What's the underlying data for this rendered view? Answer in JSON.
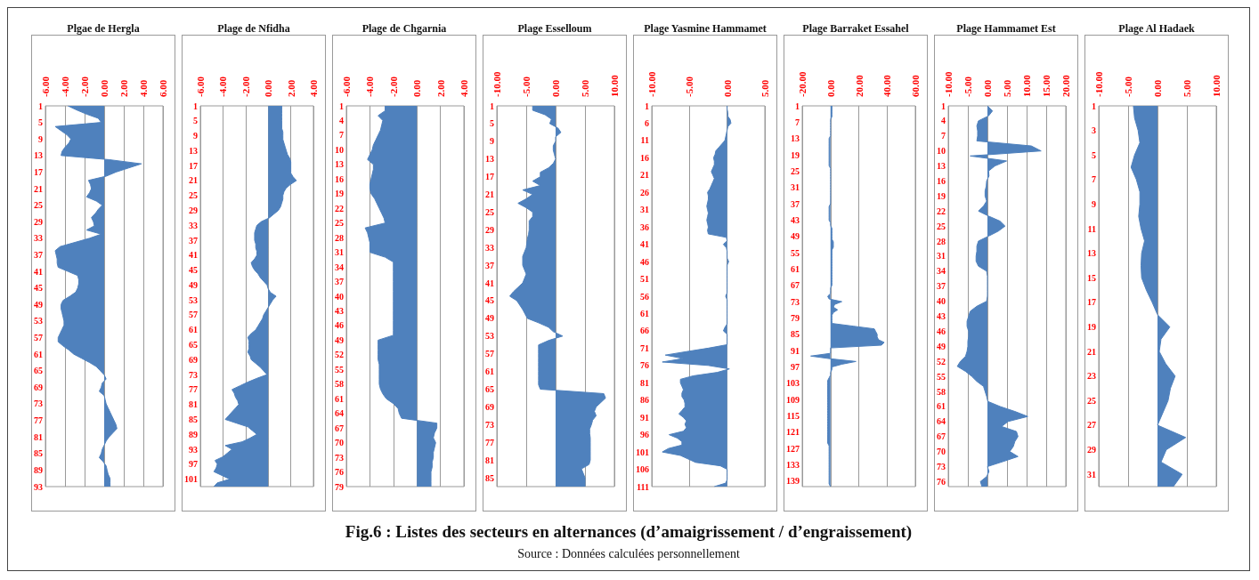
{
  "chart_data": [
    {
      "type": "area",
      "orientation": "horizontal",
      "title": "Plgae de Hergla",
      "color": "#4f81bd",
      "grid": "x",
      "xlim": [
        -6,
        6
      ],
      "xticks": [
        {
          "value": -6,
          "label": "-6.00"
        },
        {
          "value": -4,
          "label": "-4.00"
        },
        {
          "value": -2,
          "label": "-2.00"
        },
        {
          "value": 0,
          "label": "0.00"
        },
        {
          "value": 2,
          "label": "2.00"
        },
        {
          "value": 4,
          "label": "4.00"
        },
        {
          "value": 6,
          "label": "6.00"
        }
      ],
      "categories": [
        "1",
        null,
        null,
        null,
        "5",
        null,
        null,
        null,
        "9",
        null,
        null,
        null,
        "13",
        null,
        null,
        null,
        "17",
        null,
        null,
        null,
        "21",
        null,
        null,
        null,
        "25",
        null,
        null,
        null,
        "29",
        null,
        null,
        null,
        "33",
        null,
        null,
        null,
        "37",
        null,
        null,
        null,
        "41",
        null,
        null,
        null,
        "45",
        null,
        null,
        null,
        "49",
        null,
        null,
        null,
        "53",
        null,
        null,
        null,
        "57",
        null,
        null,
        null,
        "61",
        null,
        null,
        null,
        "65",
        null,
        null,
        null,
        "69",
        null,
        null,
        null,
        "73",
        null,
        null,
        null,
        "77",
        null,
        null,
        null,
        "81",
        null,
        null,
        null,
        "85",
        null,
        null,
        null,
        "89",
        null,
        null,
        null,
        "93"
      ],
      "values": [
        -3.7,
        -2.8,
        -1.8,
        -0.6,
        -0.3,
        -5.0,
        -4.4,
        -3.8,
        -3.4,
        -3.6,
        -4.0,
        -4.3,
        -4.4,
        0.5,
        3.8,
        2.5,
        1.2,
        0.2,
        -1.6,
        -1.4,
        -1.3,
        -1.5,
        -1.8,
        -0.8,
        -0.2,
        -0.6,
        -0.9,
        -1.3,
        -1.1,
        -1.0,
        -1.8,
        -0.3,
        -1.5,
        -3.0,
        -4.5,
        -5.0,
        -4.9,
        -4.8,
        -4.8,
        -4.7,
        -3.7,
        -2.7,
        -2.6,
        -2.6,
        -2.7,
        -2.9,
        -3.5,
        -4.2,
        -4.4,
        -4.4,
        -4.3,
        -4.2,
        -4.1,
        -4.1,
        -4.3,
        -4.5,
        -4.7,
        -4.7,
        -4.2,
        -3.6,
        -3.1,
        -2.3,
        -1.5,
        -0.8,
        -0.4,
        0,
        0.2,
        -0.2,
        -0.3,
        -0.5,
        0,
        0.1,
        0.2,
        0.4,
        0.6,
        0.8,
        1.0,
        1.2,
        1.3,
        0.9,
        0.5,
        0.2,
        0,
        -0.2,
        -0.3,
        -0.5,
        -0.1,
        0.2,
        0.3,
        0.4,
        0.6,
        0.6,
        0.6
      ]
    },
    {
      "type": "area",
      "orientation": "horizontal",
      "title": "Plage de Nfidha",
      "color": "#4f81bd",
      "grid": "x",
      "xlim": [
        -6,
        4
      ],
      "xticks": [
        {
          "value": -6,
          "label": "-6.00"
        },
        {
          "value": -4,
          "label": "-4.00"
        },
        {
          "value": -2,
          "label": "-2.00"
        },
        {
          "value": 0,
          "label": "0.00"
        },
        {
          "value": 2,
          "label": "2.00"
        },
        {
          "value": 4,
          "label": "4.00"
        }
      ],
      "categories": [
        "1",
        null,
        null,
        null,
        "5",
        null,
        null,
        null,
        "9",
        null,
        null,
        null,
        "13",
        null,
        null,
        null,
        "17",
        null,
        null,
        null,
        "21",
        null,
        null,
        null,
        "25",
        null,
        null,
        null,
        "29",
        null,
        null,
        null,
        "33",
        null,
        null,
        null,
        "37",
        null,
        null,
        null,
        "41",
        null,
        null,
        null,
        "45",
        null,
        null,
        null,
        "49",
        null,
        null,
        null,
        "53",
        null,
        null,
        null,
        "57",
        null,
        null,
        null,
        "61",
        null,
        null,
        null,
        "65",
        null,
        null,
        null,
        "69",
        null,
        null,
        null,
        "73",
        null,
        null,
        null,
        "77",
        null,
        null,
        null,
        "81",
        null,
        null,
        null,
        "85",
        null,
        null,
        null,
        "89",
        null,
        null,
        null,
        "93",
        null,
        null,
        null,
        "97",
        null,
        null,
        null,
        "101",
        null,
        null
      ],
      "values": [
        1.2,
        1.2,
        1.2,
        1.2,
        1.2,
        1.2,
        1.2,
        1.3,
        1.3,
        1.3,
        1.4,
        1.5,
        1.6,
        1.7,
        1.9,
        2.0,
        2.0,
        2.0,
        2.0,
        2.2,
        2.5,
        2.0,
        1.6,
        1.4,
        1.3,
        1.3,
        1.2,
        1.1,
        0.9,
        0.5,
        0.1,
        -0.6,
        -1.0,
        -1.1,
        -1.2,
        -1.2,
        -1.2,
        -1.1,
        -1.1,
        -1.0,
        -1.0,
        -1.2,
        -1.5,
        -1.4,
        -1.2,
        -0.9,
        -0.7,
        -0.4,
        -0.1,
        0,
        0.2,
        0.7,
        0.4,
        0.2,
        0,
        -0.2,
        -0.4,
        -0.5,
        -0.7,
        -0.9,
        -1.1,
        -1.5,
        -1.8,
        -1.7,
        -1.7,
        -1.7,
        -1.8,
        -1.6,
        -1.5,
        -1.1,
        -0.7,
        -0.4,
        -0.1,
        -1.0,
        -1.8,
        -2.5,
        -3.2,
        -3.0,
        -2.9,
        -2.7,
        -2.6,
        -2.9,
        -3.2,
        -3.5,
        -3.8,
        -2.8,
        -1.8,
        -1.4,
        -1.0,
        -1.6,
        -2.3,
        -3.8,
        -3.2,
        -3.6,
        -4.0,
        -4.7,
        -4.5,
        -4.6,
        -4.8,
        -4.1,
        -3.4,
        -4.5,
        -4.8
      ]
    },
    {
      "type": "area",
      "orientation": "horizontal",
      "title": "Plage de Chgarnia",
      "color": "#4f81bd",
      "grid": "x",
      "xlim": [
        -6,
        4
      ],
      "xticks": [
        {
          "value": -6,
          "label": "-6.00"
        },
        {
          "value": -4,
          "label": "-4.00"
        },
        {
          "value": -2,
          "label": "-2.00"
        },
        {
          "value": 0,
          "label": "0.00"
        },
        {
          "value": 2,
          "label": "2.00"
        },
        {
          "value": 4,
          "label": "4.00"
        }
      ],
      "categories": [
        "1",
        null,
        null,
        "4",
        null,
        null,
        "7",
        null,
        null,
        "10",
        null,
        null,
        "13",
        null,
        null,
        "16",
        null,
        null,
        "19",
        null,
        null,
        "22",
        null,
        null,
        "25",
        null,
        null,
        "28",
        null,
        null,
        "31",
        null,
        null,
        "34",
        null,
        null,
        "37",
        null,
        null,
        "40",
        null,
        null,
        "43",
        null,
        null,
        "46",
        null,
        null,
        "49",
        null,
        null,
        "52",
        null,
        null,
        "55",
        null,
        null,
        "58",
        null,
        null,
        "61",
        null,
        null,
        "64",
        null,
        null,
        "67",
        null,
        null,
        "70",
        null,
        null,
        "73",
        null,
        null,
        "76",
        null,
        null,
        "79"
      ],
      "values": [
        -2.7,
        -2.7,
        -3.3,
        -2.9,
        -3.0,
        -3.1,
        -3.3,
        -3.5,
        -3.7,
        -3.8,
        -4.0,
        -4.2,
        -3.7,
        -3.7,
        -3.8,
        -3.9,
        -4.0,
        -4.0,
        -3.9,
        -3.6,
        -3.4,
        -3.2,
        -3.0,
        -2.8,
        -2.7,
        -4.4,
        -4.2,
        -4.1,
        -4.0,
        -4.0,
        -4.0,
        -2.7,
        -2.0,
        -2.0,
        -2.0,
        -2.0,
        -2.0,
        -2.0,
        -2.0,
        -2.0,
        -2.0,
        -2.0,
        -2.0,
        -2.0,
        -2.0,
        -2.0,
        -2.0,
        -2.0,
        -3.3,
        -3.3,
        -3.3,
        -3.3,
        -3.3,
        -3.2,
        -3.2,
        -3.2,
        -3.2,
        -3.2,
        -3.1,
        -2.9,
        -2.6,
        -2.0,
        -1.6,
        -1.5,
        -1.3,
        1.7,
        1.7,
        1.5,
        1.4,
        1.6,
        1.5,
        1.4,
        1.4,
        1.3,
        1.3,
        1.2,
        1.2,
        1.2,
        1.2
      ]
    },
    {
      "type": "area",
      "orientation": "horizontal",
      "title": "Plage Esselloum",
      "color": "#4f81bd",
      "grid": "x",
      "xlim": [
        -10,
        10
      ],
      "xticks": [
        {
          "value": -10,
          "label": "-10.00"
        },
        {
          "value": -5,
          "label": "-5.00"
        },
        {
          "value": 0,
          "label": "0.00"
        },
        {
          "value": 5,
          "label": "5.00"
        },
        {
          "value": 10,
          "label": "10.00"
        }
      ],
      "categories": [
        "1",
        null,
        null,
        null,
        "5",
        null,
        null,
        null,
        "9",
        null,
        null,
        null,
        "13",
        null,
        null,
        null,
        "17",
        null,
        null,
        null,
        "21",
        null,
        null,
        null,
        "25",
        null,
        null,
        null,
        "29",
        null,
        null,
        null,
        "33",
        null,
        null,
        null,
        "37",
        null,
        null,
        null,
        "41",
        null,
        null,
        null,
        "45",
        null,
        null,
        null,
        "49",
        null,
        null,
        null,
        "53",
        null,
        null,
        null,
        "57",
        null,
        null,
        null,
        "61",
        null,
        null,
        null,
        "65",
        null,
        null,
        null,
        "69",
        null,
        null,
        null,
        "73",
        null,
        null,
        null,
        "77",
        null,
        null,
        null,
        "81",
        null,
        null,
        null,
        "85",
        null,
        null
      ],
      "values": [
        -3.9,
        -3.9,
        -1.8,
        -0.7,
        -1.0,
        0.4,
        0.9,
        0,
        0,
        -0.4,
        -0.4,
        -0.2,
        0,
        -0.4,
        -1.2,
        -2.6,
        -2.6,
        -3.9,
        -2.6,
        -5.6,
        -3.9,
        -5.0,
        -6.4,
        -5.0,
        -3.9,
        -3.9,
        -4.5,
        -4.5,
        -4.5,
        -4.6,
        -4.8,
        -4.9,
        -5.0,
        -5.3,
        -5.6,
        -5.6,
        -5.6,
        -5.3,
        -5.0,
        -5.3,
        -5.6,
        -6.4,
        -7.2,
        -7.8,
        -6.6,
        -6.1,
        -5.6,
        -5.2,
        -4.8,
        -2.9,
        -1.2,
        -0.4,
        1.2,
        -1.2,
        -2.9,
        -2.9,
        -2.9,
        -2.9,
        -2.9,
        -2.9,
        -2.9,
        -2.9,
        -2.9,
        -2.9,
        -2.6,
        8.2,
        8.5,
        7.7,
        6.9,
        6.6,
        6.9,
        6.3,
        6.1,
        5.8,
        5.8,
        5.9,
        5.9,
        5.9,
        5.9,
        5.9,
        5.9,
        5.7,
        4.4,
        4.7,
        5.0,
        5.0,
        5.0
      ]
    },
    {
      "type": "area",
      "orientation": "horizontal",
      "title": "Plage Yasmine Hammamet",
      "color": "#4f81bd",
      "grid": "x",
      "xlim": [
        -10,
        5
      ],
      "xticks": [
        {
          "value": -10,
          "label": "-10.00"
        },
        {
          "value": -5,
          "label": "-5.00"
        },
        {
          "value": 0,
          "label": "0.00"
        },
        {
          "value": 5,
          "label": "5.00"
        }
      ],
      "categories": [
        "1",
        null,
        null,
        null,
        null,
        "6",
        null,
        null,
        null,
        null,
        "11",
        null,
        null,
        null,
        null,
        "16",
        null,
        null,
        null,
        null,
        "21",
        null,
        null,
        null,
        null,
        "26",
        null,
        null,
        null,
        null,
        "31",
        null,
        null,
        null,
        null,
        "36",
        null,
        null,
        null,
        null,
        "41",
        null,
        null,
        null,
        null,
        "46",
        null,
        null,
        null,
        null,
        "51",
        null,
        null,
        null,
        null,
        "56",
        null,
        null,
        null,
        null,
        "61",
        null,
        null,
        null,
        null,
        "66",
        null,
        null,
        null,
        null,
        "71",
        null,
        null,
        null,
        null,
        "76",
        null,
        null,
        null,
        null,
        "81",
        null,
        null,
        null,
        null,
        "86",
        null,
        null,
        null,
        null,
        "91",
        null,
        null,
        null,
        null,
        "96",
        null,
        null,
        null,
        null,
        "101",
        null,
        null,
        null,
        null,
        "106",
        null,
        null,
        null,
        null,
        "111"
      ],
      "values": [
        0,
        0,
        0.1,
        0.1,
        0.4,
        0.5,
        0.1,
        0,
        -0.1,
        -0.2,
        -0.3,
        -0.7,
        -1.1,
        -1.5,
        -1.6,
        -1.8,
        -1.7,
        -1.7,
        -1.9,
        -2.1,
        -1.9,
        -1.7,
        -1.9,
        -2.1,
        -2.3,
        -2.6,
        -2.5,
        -2.5,
        -2.6,
        -2.7,
        -2.6,
        -2.5,
        -2.6,
        -2.7,
        -2.6,
        -2.5,
        -2.6,
        -2.5,
        -0.1,
        0,
        -0.5,
        -0.1,
        0,
        0,
        0,
        0.2,
        0,
        0,
        0,
        0,
        0,
        0,
        0,
        0,
        0,
        -0.2,
        0,
        0,
        0,
        0,
        0,
        0,
        0,
        0,
        -0.3,
        -0.5,
        0,
        0,
        0,
        0,
        -2.5,
        -5.4,
        -8.2,
        -5.8,
        -8.6,
        -2.5,
        0.3,
        -1.3,
        -4.5,
        -6.2,
        -6.2,
        -6.0,
        -5.8,
        -6.0,
        -6.0,
        -5.7,
        -5.6,
        -5.6,
        -6.0,
        -6.4,
        -5.8,
        -5.4,
        -5.6,
        -5.4,
        -5.8,
        -7.7,
        -6.6,
        -6.0,
        -6.0,
        -7.8,
        -8.6,
        -6.2,
        -5.2,
        -4.2,
        -0.9,
        0,
        0,
        0,
        0,
        -0.2,
        -1.7
      ]
    },
    {
      "type": "area",
      "orientation": "horizontal",
      "title": "Plage Barraket Essahel",
      "color": "#4f81bd",
      "grid": "x",
      "xlim": [
        -20,
        60
      ],
      "xticks": [
        {
          "value": -20,
          "label": "-20.00"
        },
        {
          "value": 0,
          "label": "0.00"
        },
        {
          "value": 20,
          "label": "20.00"
        },
        {
          "value": 40,
          "label": "40.00"
        },
        {
          "value": 60,
          "label": "60.00"
        }
      ],
      "categories": [
        "1",
        null,
        null,
        null,
        null,
        null,
        "7",
        null,
        null,
        null,
        null,
        null,
        "13",
        null,
        null,
        null,
        null,
        null,
        "19",
        null,
        null,
        null,
        null,
        null,
        "25",
        null,
        null,
        null,
        null,
        null,
        "31",
        null,
        null,
        null,
        null,
        null,
        "37",
        null,
        null,
        null,
        null,
        null,
        "43",
        null,
        null,
        null,
        null,
        null,
        "49",
        null,
        null,
        null,
        null,
        null,
        "55",
        null,
        null,
        null,
        null,
        null,
        "61",
        null,
        null,
        null,
        null,
        null,
        "67",
        null,
        null,
        null,
        null,
        null,
        "73",
        null,
        null,
        null,
        null,
        null,
        "79",
        null,
        null,
        null,
        null,
        null,
        "85",
        null,
        null,
        null,
        null,
        null,
        "91",
        null,
        null,
        null,
        null,
        null,
        "97",
        null,
        null,
        null,
        null,
        null,
        "103",
        null,
        null,
        null,
        null,
        null,
        "109",
        null,
        null,
        null,
        null,
        null,
        "115",
        null,
        null,
        null,
        null,
        null,
        "121",
        null,
        null,
        null,
        null,
        null,
        "127",
        null,
        null,
        null,
        null,
        null,
        "133",
        null,
        null,
        null,
        null,
        null,
        "139",
        null,
        null
      ],
      "values": [
        1,
        1,
        1,
        1,
        1,
        0,
        0,
        0,
        0,
        0,
        0,
        0,
        -1,
        -1,
        -1,
        -1,
        -1,
        -1,
        -1,
        -1,
        -1,
        -1,
        -1,
        0,
        0,
        0,
        0,
        0,
        0,
        0,
        0,
        0,
        0,
        0,
        0,
        0,
        0,
        -1,
        -1,
        -1,
        -1,
        -1,
        -1,
        0,
        0,
        1,
        1,
        1,
        1,
        1,
        2,
        2,
        2,
        1,
        1,
        1,
        1,
        1,
        1,
        1,
        1,
        1,
        1,
        1,
        1,
        1,
        1,
        0,
        0,
        0,
        -2,
        -1,
        8,
        3,
        2,
        5,
        2,
        1,
        1,
        1,
        1,
        16,
        31,
        32,
        33,
        33,
        34,
        38,
        36,
        0,
        0,
        0,
        -14,
        0,
        18,
        8,
        1,
        1,
        0,
        0,
        -1,
        -2,
        -2,
        -2,
        -2,
        -2,
        -2,
        -2,
        -2,
        -2,
        -2,
        -2,
        -2,
        -2,
        -2,
        -2,
        -2,
        -2,
        -2,
        -2,
        -2,
        -2,
        -2,
        -2,
        -2,
        -1,
        -1,
        -1,
        -1,
        -1,
        -1,
        -1,
        -1,
        -1,
        -1,
        -1,
        -1,
        -1,
        -1,
        -1,
        0
      ]
    },
    {
      "type": "area",
      "orientation": "horizontal",
      "title": "Plage Hammamet Est",
      "color": "#4f81bd",
      "grid": "x",
      "xlim": [
        -10,
        20
      ],
      "xticks": [
        {
          "value": -10,
          "label": "-10.00"
        },
        {
          "value": -5,
          "label": "-5.00"
        },
        {
          "value": 0,
          "label": "0.00"
        },
        {
          "value": 5,
          "label": "5.00"
        },
        {
          "value": 10,
          "label": "10.00"
        },
        {
          "value": 15,
          "label": "15.00"
        },
        {
          "value": 20,
          "label": "20.00"
        }
      ],
      "categories": [
        "1",
        null,
        null,
        "4",
        null,
        null,
        "7",
        null,
        null,
        "10",
        null,
        null,
        "13",
        null,
        null,
        "16",
        null,
        null,
        "19",
        null,
        null,
        "22",
        null,
        null,
        "25",
        null,
        null,
        "28",
        null,
        null,
        "31",
        null,
        null,
        "34",
        null,
        null,
        "37",
        null,
        null,
        "40",
        null,
        null,
        "43",
        null,
        null,
        "46",
        null,
        null,
        "49",
        null,
        null,
        "52",
        null,
        null,
        "55",
        null,
        null,
        "58",
        null,
        null,
        "61",
        null,
        null,
        "64",
        null,
        null,
        "67",
        null,
        null,
        "70",
        null,
        null,
        "73",
        null,
        null,
        "76",
        null
      ],
      "values": [
        0,
        1.3,
        0.3,
        -2.3,
        -2.7,
        -2.5,
        -2.5,
        -2.7,
        11.2,
        13.7,
        -4.4,
        4.9,
        1.9,
        0.3,
        0.4,
        -0.2,
        -0.3,
        -0.6,
        -0.6,
        -0.2,
        -1.0,
        -2.3,
        0.3,
        3.2,
        4.5,
        2.8,
        0.3,
        -2.3,
        -2.7,
        -2.7,
        -2.9,
        -2.9,
        -2.3,
        -0.2,
        0,
        0,
        0,
        0,
        0,
        -0.2,
        -2.7,
        -4.4,
        -4.8,
        -5.2,
        -5.2,
        -4.8,
        -4.8,
        -5.0,
        -5.0,
        -5.2,
        -5.6,
        -6.9,
        -7.7,
        -5.6,
        -4.0,
        -2.7,
        -1.0,
        -0.6,
        -0.2,
        0.1,
        3.2,
        7.0,
        10.3,
        5.3,
        3.6,
        7.4,
        7.8,
        7.0,
        6.6,
        5.7,
        7.8,
        4.0,
        0,
        0.4,
        -0.2,
        -1.8,
        -1.4
      ]
    },
    {
      "type": "area",
      "orientation": "horizontal",
      "title": "Plage Al Hadaek",
      "color": "#4f81bd",
      "grid": "x",
      "xlim": [
        -10,
        10
      ],
      "xticks": [
        {
          "value": -10,
          "label": "-10.00"
        },
        {
          "value": -5,
          "label": "-5.00"
        },
        {
          "value": 0,
          "label": "0.00"
        },
        {
          "value": 5,
          "label": "5.00"
        },
        {
          "value": 10,
          "label": "10.00"
        }
      ],
      "categories": [
        "1",
        null,
        "3",
        null,
        "5",
        null,
        "7",
        null,
        "9",
        null,
        "11",
        null,
        "13",
        null,
        "15",
        null,
        "17",
        null,
        "19",
        null,
        "21",
        null,
        "23",
        null,
        "25",
        null,
        "27",
        null,
        "29",
        null,
        "31",
        null
      ],
      "values": [
        -4.1,
        -3.9,
        -3.3,
        -3.0,
        -3.9,
        -4.5,
        -3.6,
        -3.0,
        -3.0,
        -3.2,
        -2.8,
        -2.2,
        -2.7,
        -2.8,
        -2.7,
        -1.9,
        -0.9,
        0,
        2.1,
        0.6,
        0.3,
        1.4,
        3.0,
        2.2,
        1.8,
        0.9,
        0,
        4.8,
        1.5,
        0.6,
        4.2,
        2.7
      ]
    },
    {
      "type": "other",
      "title": "Fig.6 : Listes des secteurs en alternances (d’amaigrissement  / d’engraissement)",
      "annotations": [
        "Source : Données calculées personnellement"
      ]
    }
  ]
}
